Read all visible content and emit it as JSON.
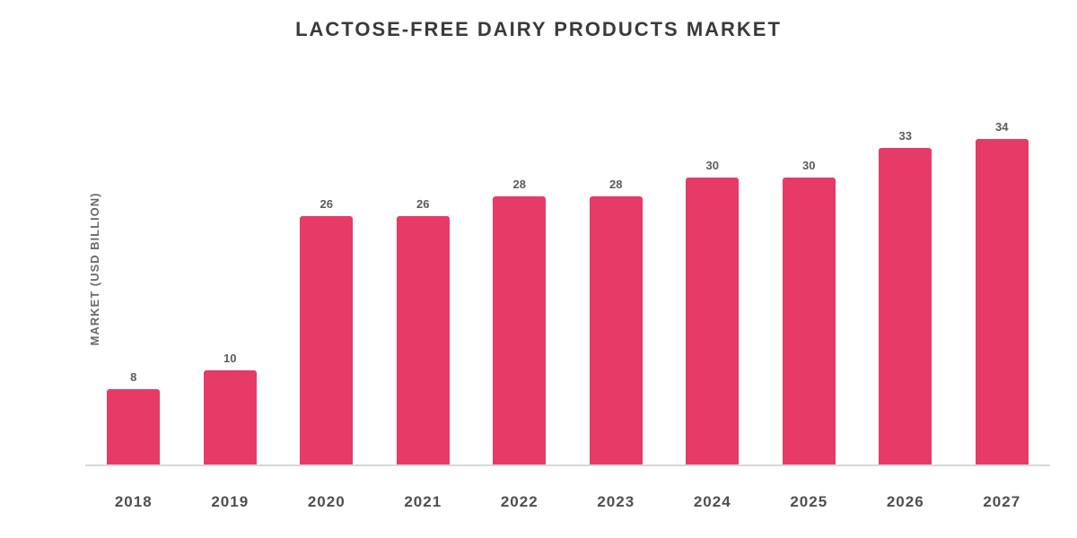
{
  "chart": {
    "type": "bar",
    "title": "LACTOSE-FREE DAIRY PRODUCTS MARKET",
    "title_fontsize": 22,
    "title_color": "#3a3a3a",
    "ylabel": "MARKET (USD BILLION)",
    "ylabel_fontsize": 13,
    "ylabel_color": "#6a6a6a",
    "background_color": "#ffffff",
    "baseline_color": "#d8d8d8",
    "bar_color": "#e63b67",
    "bar_width_pct": 55,
    "value_label_fontsize": 13,
    "value_label_color": "#5b5b5b",
    "xaxis_fontsize": 17,
    "xaxis_color": "#4f4f4f",
    "ylim": [
      0,
      40
    ],
    "categories": [
      "2018",
      "2019",
      "2020",
      "2021",
      "2022",
      "2023",
      "2024",
      "2025",
      "2026",
      "2027"
    ],
    "values": [
      8,
      10,
      26,
      26,
      28,
      28,
      30,
      30,
      33,
      34
    ]
  }
}
